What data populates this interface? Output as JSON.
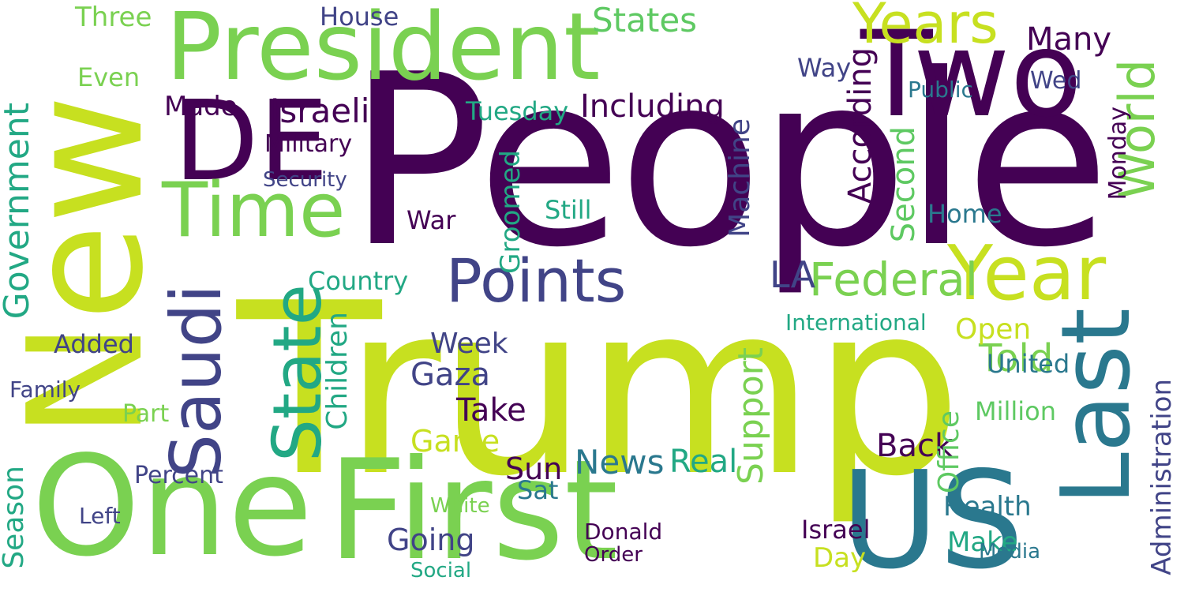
{
  "wordcloud": {
    "words": [
      "People",
      "Trump",
      "New",
      "One",
      "First",
      "US",
      "President",
      "Two",
      "DE",
      "Last",
      "Year",
      "Time",
      "Saudi",
      "Years",
      "State",
      "Government",
      "Points",
      "Federal",
      "World",
      "Season",
      "Three",
      "House",
      "Israeli",
      "Including",
      "Added",
      "Made",
      "Military",
      "Machine",
      "According",
      "Second",
      "Support",
      "LA",
      "States",
      "Many",
      "Gaza",
      "Game",
      "Take",
      "Back",
      "News",
      "Health",
      "Going",
      "Sun",
      "Office",
      "Percent",
      "Sat",
      "Told",
      "Day",
      "Make",
      "Administration",
      "Country",
      "Week",
      "Children",
      "Open",
      "United",
      "Million",
      "Israel",
      "International",
      "Groomed",
      "War",
      "Home",
      "Still",
      "Real",
      "Security",
      "Tuesday",
      "Wed",
      "Monday",
      "Even",
      "Way",
      "Public",
      "Media",
      "Family",
      "Part",
      "Left",
      "Donald",
      "Order",
      "Social",
      "White"
    ]
  }
}
